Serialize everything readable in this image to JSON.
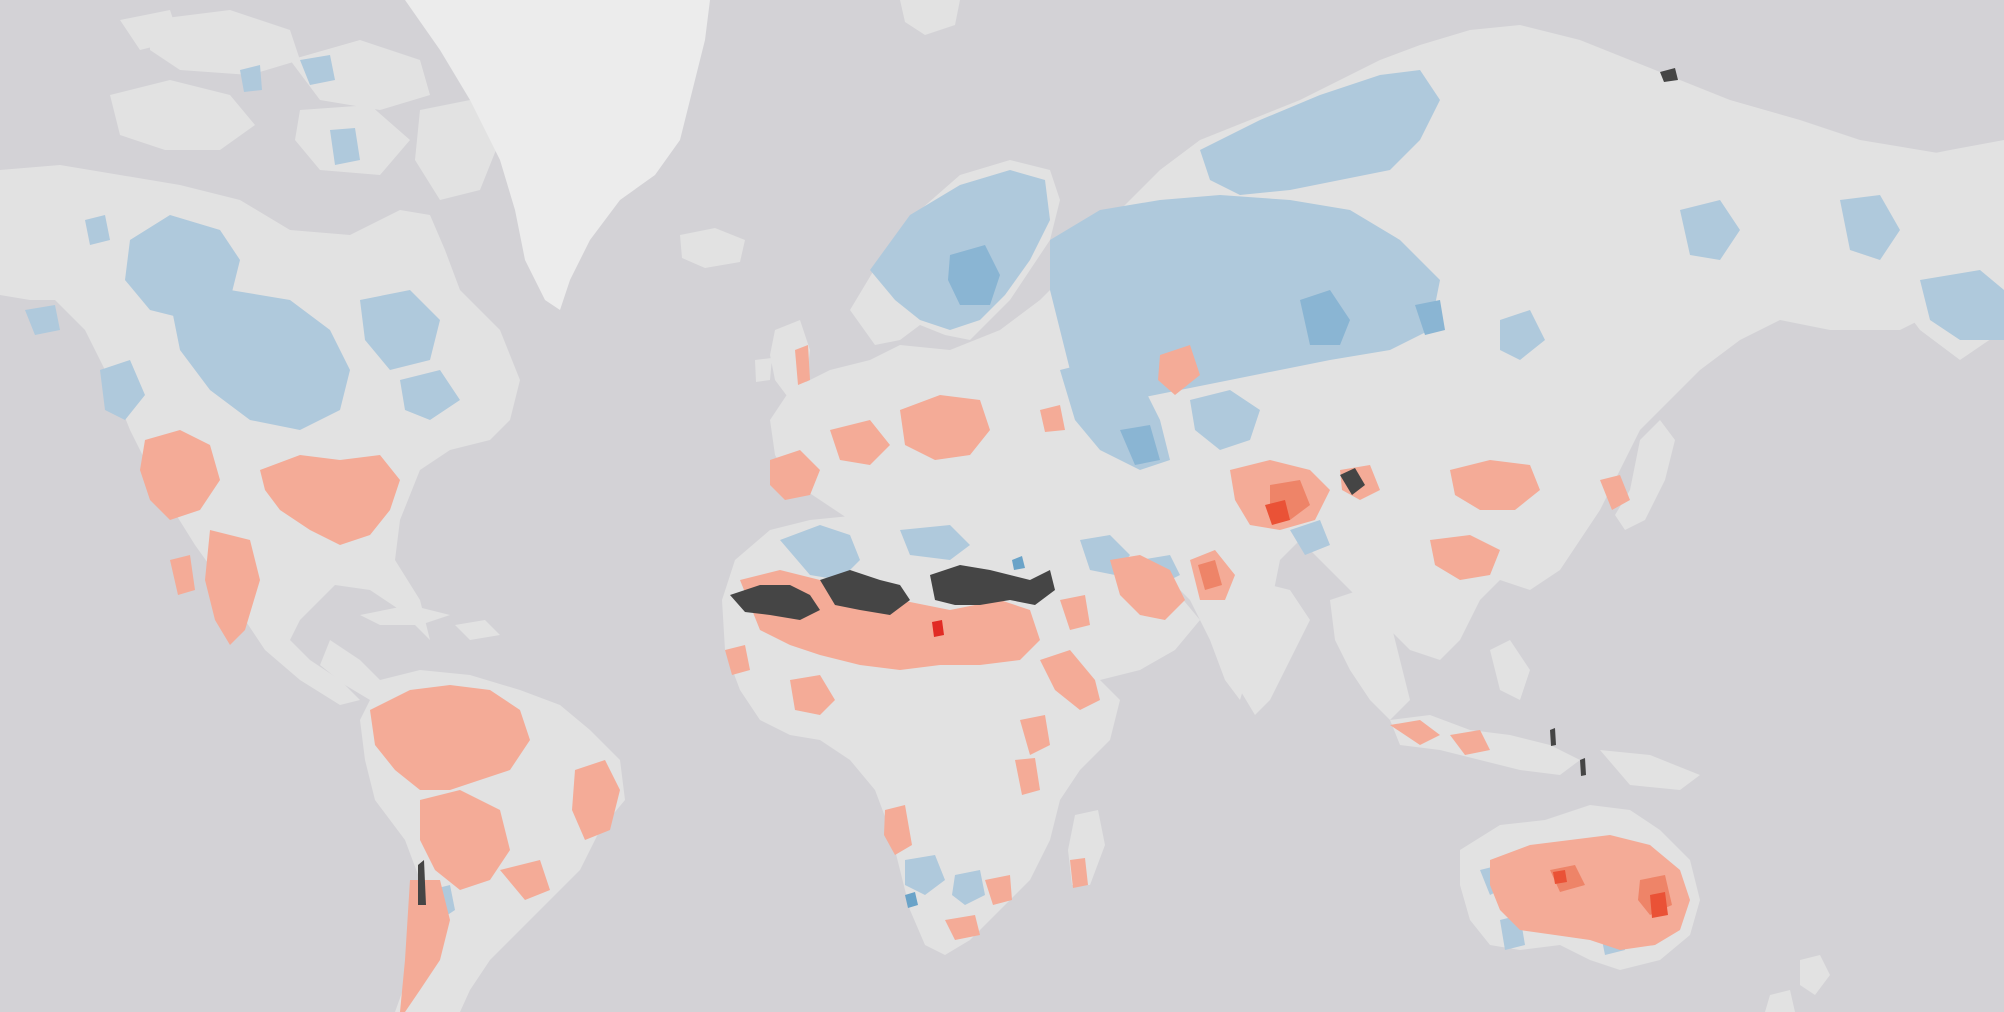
{
  "map": {
    "projection": "Web Mercator",
    "view": "world",
    "colors": {
      "ocean": "#d3d2d6",
      "land": "#e2e2e2",
      "greenland_ice": "#ececec",
      "no_data": "#454545",
      "blue_light": "#afc9dc",
      "blue_mid": "#8ab5d3",
      "blue_dark": "#6aa3c8",
      "red_light": "#f4ab97",
      "red_mid": "#ee8468",
      "red_dark": "#ea5236",
      "red_strong": "#e12b24"
    },
    "legend_visible": false,
    "labels_visible": false
  }
}
